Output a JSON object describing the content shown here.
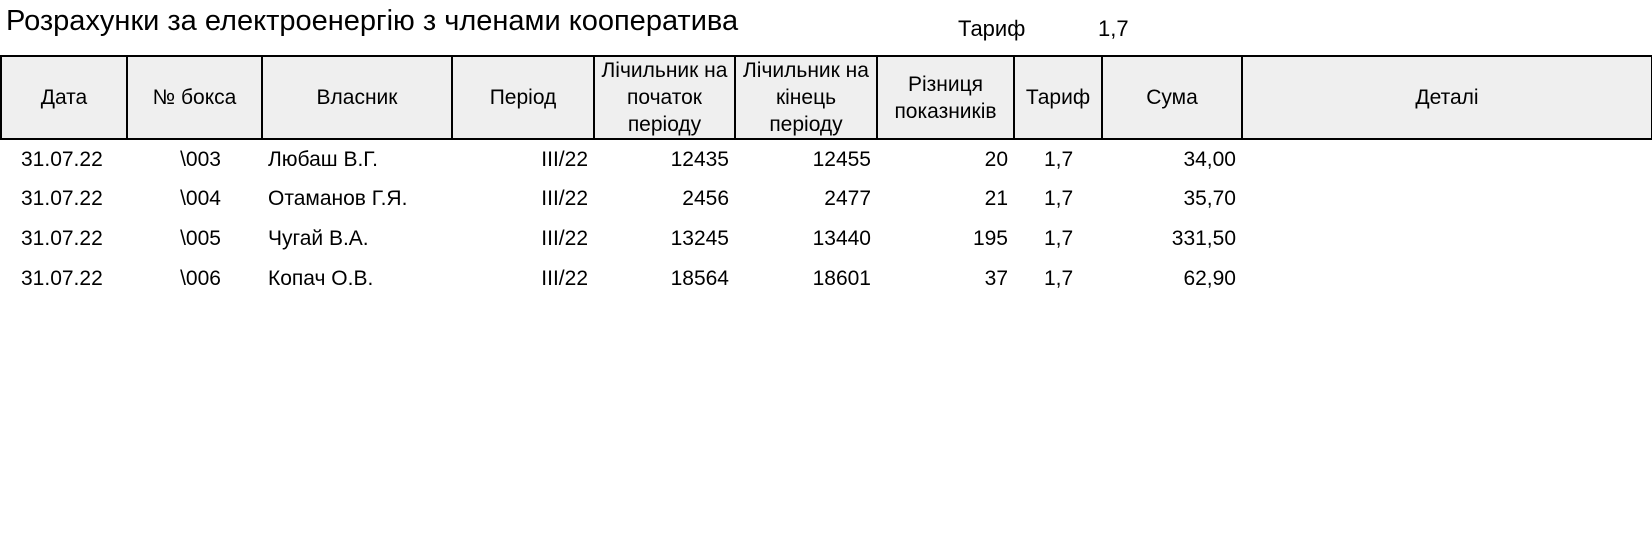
{
  "header": {
    "title": "Розрахунки за електроенергію з членами кооператива",
    "tariff_label": "Тариф",
    "tariff_value": "1,7"
  },
  "table": {
    "columns": [
      "Дата",
      "№ бокса",
      "Власник",
      "Період",
      "Лічильник на початок періоду",
      "Лічильник на кінець періоду",
      "Різниця показників",
      "Тариф",
      "Сума",
      "Деталі"
    ],
    "rows": [
      [
        "31.07.22",
        "\\003",
        "Любаш В.Г.",
        "III/22",
        "12435",
        "12455",
        "20",
        "1,7",
        "34,00",
        ""
      ],
      [
        "31.07.22",
        "\\004",
        "Отаманов Г.Я.",
        "III/22",
        "2456",
        "2477",
        "21",
        "1,7",
        "35,70",
        ""
      ],
      [
        "31.07.22",
        "\\005",
        "Чугай В.А.",
        "III/22",
        "13245",
        "13440",
        "195",
        "1,7",
        "331,50",
        ""
      ],
      [
        "31.07.22",
        "\\006",
        "Копач О.В.",
        "III/22",
        "18564",
        "18601",
        "37",
        "1,7",
        "62,90",
        ""
      ]
    ]
  }
}
